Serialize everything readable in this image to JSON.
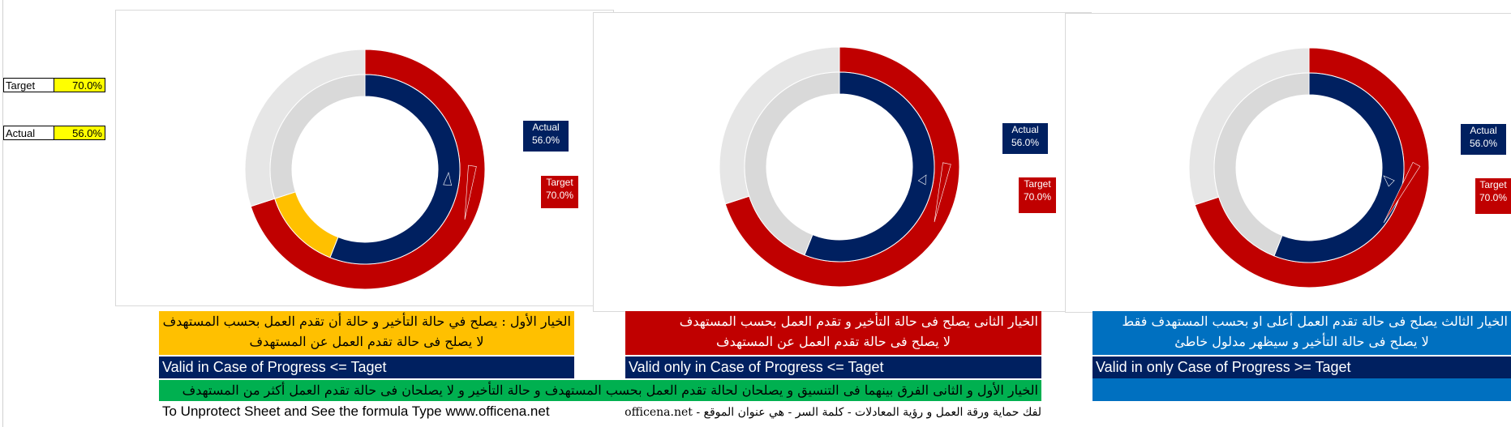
{
  "inputs": {
    "target_label": "Target",
    "target_value": "70.0%",
    "actual_label": "Actual",
    "actual_value": "56.0%"
  },
  "chart_data": [
    {
      "type": "doughnut",
      "option": 1,
      "outer_ring": [
        {
          "name": "Target",
          "value": 0.7,
          "color": "#c00000"
        },
        {
          "name": "Remaining",
          "value": 0.3,
          "color": "#e6e6e6"
        }
      ],
      "inner_ring": [
        {
          "name": "Actual",
          "value": 0.56,
          "color": "#002060"
        },
        {
          "name": "Gap",
          "value": 0.14,
          "color": "#ffc000"
        },
        {
          "name": "Remaining",
          "value": 0.3,
          "color": "#d9d9d9"
        }
      ],
      "labels": [
        {
          "series": "Actual",
          "text1": "Actual",
          "text2": "56.0%"
        },
        {
          "series": "Target",
          "text1": "Target",
          "text2": "70.0%"
        }
      ]
    },
    {
      "type": "doughnut",
      "option": 2,
      "outer_ring": [
        {
          "name": "Target",
          "value": 0.7,
          "color": "#c00000"
        },
        {
          "name": "Remaining",
          "value": 0.3,
          "color": "#e6e6e6"
        }
      ],
      "inner_ring": [
        {
          "name": "Actual",
          "value": 0.56,
          "color": "#002060"
        },
        {
          "name": "Remaining",
          "value": 0.44,
          "color": "#d9d9d9"
        }
      ],
      "labels": [
        {
          "series": "Actual",
          "text1": "Actual",
          "text2": "56.0%"
        },
        {
          "series": "Target",
          "text1": "Target",
          "text2": "70.0%"
        }
      ]
    },
    {
      "type": "doughnut",
      "option": 3,
      "outer_ring": [
        {
          "name": "Target",
          "value": 0.7,
          "color": "#c00000"
        },
        {
          "name": "Remaining",
          "value": 0.3,
          "color": "#e6e6e6"
        }
      ],
      "inner_ring": [
        {
          "name": "Actual",
          "value": 0.56,
          "color": "#002060"
        },
        {
          "name": "Remaining",
          "value": 0.44,
          "color": "#d9d9d9"
        }
      ],
      "labels": [
        {
          "series": "Actual",
          "text1": "Actual",
          "text2": "56.0%"
        },
        {
          "series": "Target",
          "text1": "Target",
          "text2": "70.0%"
        }
      ]
    }
  ],
  "options": [
    {
      "ar_line1": "الخيار الأول : يصلح في حالة التأخير و حالة أن تقدم العمل بحسب المستهدف",
      "ar_line2": "لا يصلح فى حالة تقدم العمل عن المستهدف",
      "en": "Valid in Case of Progress <= Taget",
      "ar_bg": "#ffc000",
      "ar_color": "#000000"
    },
    {
      "ar_line1": "الخيار الثانى يصلح فى حالة التأخير و تقدم العمل بحسب المستهدف",
      "ar_line2": "لا يصلح فى حالة تقدم العمل عن المستهدف",
      "en": "Valid only in Case of Progress <= Taget",
      "ar_bg": "#c00000",
      "ar_color": "#ffffff"
    },
    {
      "ar_line1": "الخيار الثالث يصلح فى حالة  تقدم العمل  أعلى او بحسب  المستهدف فقط",
      "ar_line2": "لا يصلح فى حالة التأخير و سيظهر مدلول خاطئ",
      "en": "Valid in only  Case of Progress >= Taget",
      "ar_bg": "#0070c0",
      "ar_color": "#ffffff"
    }
  ],
  "green_note": "الخيار الأول و الثانى الفرق بينهما فى التنسيق و يصلحان لحالة تقدم العمل بحسب المستهدف و حالة التأخير و لا يصلحان فى حالة تقدم العمل أكثر من المستهدف",
  "footer": {
    "left": "To Unprotect Sheet and See the formula Type www.officena.net",
    "right": "لفك حماية ورقة العمل و رؤية المعادلات - كلمة السر - هي عنوان الموقع - www.officena.net"
  },
  "colors": {
    "navy": "#002060",
    "green": "#00b050",
    "red": "#c00000",
    "gold": "#ffc000",
    "blue": "#0070c0"
  }
}
